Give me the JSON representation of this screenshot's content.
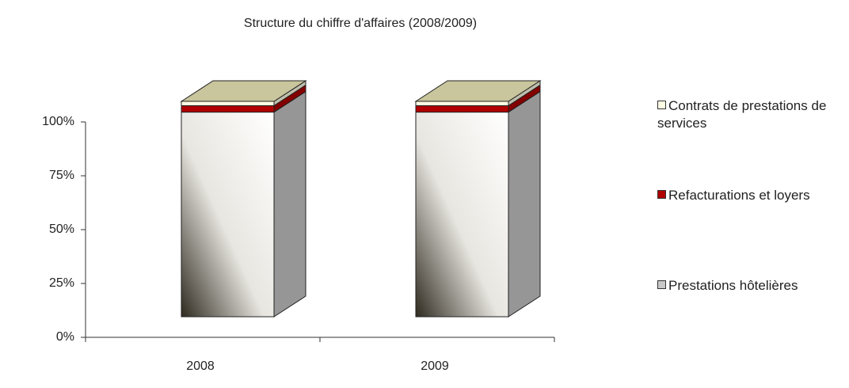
{
  "chart_data": {
    "type": "bar",
    "stacked": true,
    "three_d": true,
    "title": "Structure du chiffre d'affaires (2008/2009)",
    "categories": [
      "2008",
      "2009"
    ],
    "series": [
      {
        "name": "Prestations hôtelières",
        "color": "#c8c8c8",
        "values": [
          95,
          95
        ]
      },
      {
        "name": "Refacturations et loyers",
        "color": "#b00000",
        "values": [
          3,
          3
        ]
      },
      {
        "name": "Contrats de prestations de services",
        "color": "#fffde4",
        "values": [
          2,
          2
        ]
      }
    ],
    "top_color": "#c9c59c",
    "ylim": [
      0,
      100
    ],
    "yticks": [
      {
        "value": 0,
        "label": "0%"
      },
      {
        "value": 25,
        "label": "25%"
      },
      {
        "value": 50,
        "label": "50%"
      },
      {
        "value": 75,
        "label": "75%"
      },
      {
        "value": 100,
        "label": "100%"
      }
    ],
    "legend": "right"
  }
}
